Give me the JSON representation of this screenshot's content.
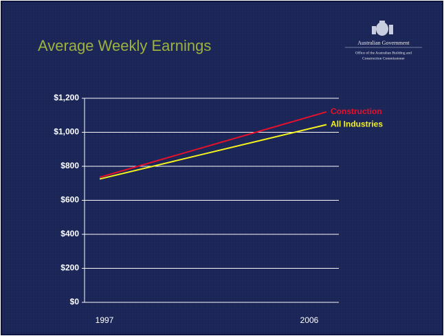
{
  "header": {
    "logo_lines": [
      "Australian Government",
      "Office of the Australian Building and",
      "Construction Commissioner"
    ]
  },
  "chart_data": {
    "type": "line",
    "title": "Average Weekly Earnings",
    "categories": [
      "1997",
      "2006"
    ],
    "series": [
      {
        "name": "Construction",
        "color": "#e8102a",
        "values": [
          735,
          1120
        ]
      },
      {
        "name": "All Industries",
        "color": "#f2f21e",
        "values": [
          725,
          1045
        ]
      }
    ],
    "ylim": [
      0,
      1200
    ],
    "yticks": [
      {
        "value": 0,
        "label": "$0"
      },
      {
        "value": 200,
        "label": "$200"
      },
      {
        "value": 400,
        "label": "$400"
      },
      {
        "value": 600,
        "label": "$600"
      },
      {
        "value": 800,
        "label": "$800"
      },
      {
        "value": 1000,
        "label": "$1,000"
      },
      {
        "value": 1200,
        "label": "$1,200"
      }
    ],
    "grid": true
  }
}
